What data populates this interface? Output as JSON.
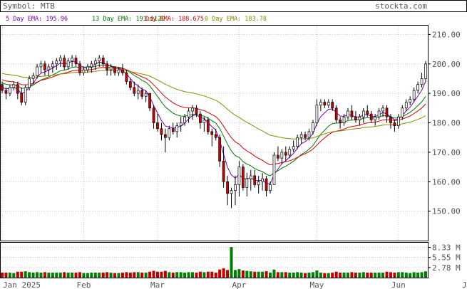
{
  "header": {
    "symbol_label": "Symbol: MTB",
    "site": "stockta.com"
  },
  "legend": [
    {
      "label": "5 Day EMA:",
      "value": "195.96",
      "color": "#7a00b0"
    },
    {
      "label": "13 Day EMA:",
      "value": "191.1120",
      "color": "#007a00"
    },
    {
      "label": "Day EMA:",
      "value": "188.675",
      "color": "#d00000"
    },
    {
      "label": "0 Day EMA:",
      "value": "183.78",
      "color": "#8a8a00"
    }
  ],
  "colors": {
    "up_candle": "#ffffff",
    "down_candle": "#d00000",
    "wick": "#000000",
    "volume_up": "#008000",
    "volume_down": "#c00000",
    "grid": "#c8c8c8",
    "text": "#555555"
  },
  "chart_data": {
    "type": "candlestick",
    "symbol": "MTB",
    "y_ticks": [
      "210.00",
      "200.00",
      "190.00",
      "180.00",
      "170.00",
      "160.00",
      "150.00"
    ],
    "ylim": [
      140,
      213
    ],
    "volume_ticks": [
      "8.33 M",
      "5.55 M",
      "2.78 M"
    ],
    "volume_lim": [
      0,
      9.6
    ],
    "x_labels": [
      "Jan 2025",
      "Feb",
      "Mar",
      "Apr",
      "May",
      "Jun",
      "Jul"
    ],
    "x_label_index": [
      0,
      21,
      40,
      61,
      81,
      102,
      122
    ],
    "ohlc": [
      [
        193,
        194,
        190,
        191
      ],
      [
        191,
        192,
        188,
        190
      ],
      [
        190,
        193,
        189,
        192
      ],
      [
        192,
        194,
        191,
        193
      ],
      [
        193,
        194,
        188,
        190
      ],
      [
        190,
        192,
        186,
        187
      ],
      [
        187,
        193,
        186,
        192
      ],
      [
        192,
        196,
        191,
        195
      ],
      [
        195,
        197,
        193,
        196
      ],
      [
        196,
        200,
        195,
        199
      ],
      [
        199,
        201,
        197,
        200
      ],
      [
        200,
        201,
        196,
        198
      ],
      [
        198,
        200,
        196,
        199
      ],
      [
        199,
        201,
        197,
        200
      ],
      [
        200,
        202,
        198,
        201
      ],
      [
        201,
        203,
        199,
        202
      ],
      [
        202,
        203,
        198,
        199
      ],
      [
        199,
        202,
        198,
        201
      ],
      [
        201,
        203,
        199,
        202
      ],
      [
        202,
        203,
        199,
        200
      ],
      [
        200,
        201,
        196,
        197
      ],
      [
        197,
        199,
        196,
        198
      ],
      [
        198,
        200,
        197,
        199
      ],
      [
        199,
        201,
        197,
        200
      ],
      [
        200,
        202,
        198,
        201
      ],
      [
        201,
        203,
        199,
        202
      ],
      [
        202,
        203,
        199,
        200
      ],
      [
        200,
        201,
        196,
        198
      ],
      [
        198,
        200,
        196,
        199
      ],
      [
        199,
        199,
        196,
        197
      ],
      [
        197,
        199,
        196,
        198
      ],
      [
        198,
        200,
        196,
        197
      ],
      [
        197,
        198,
        193,
        194
      ],
      [
        194,
        195,
        191,
        192
      ],
      [
        192,
        194,
        189,
        190
      ],
      [
        190,
        193,
        188,
        191
      ],
      [
        191,
        192,
        188,
        189
      ],
      [
        189,
        191,
        187,
        190
      ],
      [
        190,
        190,
        184,
        185
      ],
      [
        185,
        186,
        178,
        180
      ],
      [
        180,
        183,
        177,
        178
      ],
      [
        178,
        180,
        174,
        176
      ],
      [
        176,
        178,
        170,
        175
      ],
      [
        175,
        179,
        174,
        178
      ],
      [
        178,
        180,
        176,
        177
      ],
      [
        177,
        180,
        175,
        179
      ],
      [
        179,
        182,
        177,
        180
      ],
      [
        180,
        183,
        179,
        182
      ],
      [
        182,
        185,
        180,
        184
      ],
      [
        184,
        186,
        181,
        185
      ],
      [
        185,
        186,
        182,
        183
      ],
      [
        183,
        184,
        178,
        180
      ],
      [
        180,
        182,
        177,
        181
      ],
      [
        181,
        182,
        176,
        177
      ],
      [
        177,
        178,
        172,
        176
      ],
      [
        176,
        178,
        174,
        175
      ],
      [
        175,
        176,
        165,
        167
      ],
      [
        167,
        172,
        158,
        160
      ],
      [
        160,
        162,
        152,
        156
      ],
      [
        156,
        158,
        151,
        157
      ],
      [
        157,
        162,
        152,
        159
      ],
      [
        159,
        167,
        155,
        165
      ],
      [
        165,
        166,
        157,
        158
      ],
      [
        158,
        163,
        155,
        161
      ],
      [
        161,
        164,
        157,
        162
      ],
      [
        162,
        164,
        158,
        159
      ],
      [
        159,
        162,
        156,
        160
      ],
      [
        160,
        163,
        157,
        161
      ],
      [
        161,
        162,
        155,
        157
      ],
      [
        157,
        160,
        156,
        159
      ],
      [
        159,
        170,
        159,
        169
      ],
      [
        169,
        172,
        167,
        168
      ],
      [
        168,
        171,
        166,
        170
      ],
      [
        170,
        172,
        167,
        169
      ],
      [
        169,
        172,
        168,
        171
      ],
      [
        171,
        174,
        170,
        172
      ],
      [
        172,
        176,
        171,
        175
      ],
      [
        175,
        177,
        173,
        176
      ],
      [
        176,
        177,
        174,
        175
      ],
      [
        175,
        178,
        174,
        177
      ],
      [
        177,
        181,
        176,
        180
      ],
      [
        180,
        188,
        179,
        186
      ],
      [
        186,
        188,
        184,
        187
      ],
      [
        187,
        188,
        185,
        186
      ],
      [
        186,
        188,
        185,
        187
      ],
      [
        187,
        188,
        184,
        185
      ],
      [
        185,
        186,
        180,
        181
      ],
      [
        181,
        182,
        178,
        180
      ],
      [
        180,
        183,
        179,
        182
      ],
      [
        182,
        185,
        181,
        184
      ],
      [
        184,
        186,
        181,
        182
      ],
      [
        182,
        184,
        180,
        181
      ],
      [
        181,
        183,
        179,
        182
      ],
      [
        182,
        185,
        180,
        184
      ],
      [
        184,
        186,
        182,
        183
      ],
      [
        183,
        184,
        180,
        181
      ],
      [
        181,
        183,
        179,
        182
      ],
      [
        182,
        185,
        181,
        184
      ],
      [
        184,
        186,
        182,
        185
      ],
      [
        185,
        186,
        180,
        182
      ],
      [
        182,
        183,
        178,
        180
      ],
      [
        180,
        181,
        177,
        179
      ],
      [
        179,
        183,
        178,
        182
      ],
      [
        182,
        186,
        181,
        185
      ],
      [
        185,
        188,
        184,
        187
      ],
      [
        187,
        189,
        186,
        188
      ],
      [
        188,
        192,
        187,
        191
      ],
      [
        191,
        194,
        190,
        193
      ],
      [
        193,
        197,
        192,
        195
      ],
      [
        195,
        201,
        194,
        200
      ]
    ],
    "ema5": [
      192,
      191.5,
      191.7,
      192.1,
      191.4,
      189.9,
      190.6,
      192.1,
      193.4,
      195.3,
      196.9,
      197.3,
      197.9,
      198.6,
      199.4,
      200.3,
      199.9,
      200.3,
      200.9,
      200.6,
      199.4,
      198.9,
      198.9,
      199.3,
      199.9,
      200.6,
      200.4,
      199.6,
      199.4,
      198.6,
      198.4,
      197.9,
      196.6,
      195.1,
      193.4,
      192.6,
      191.4,
      190.9,
      188.9,
      185.9,
      183.3,
      180.8,
      178.9,
      178.6,
      178.1,
      178.4,
      178.9,
      179.9,
      181.3,
      182.5,
      182.7,
      181.8,
      181.5,
      180,
      178.7,
      177.5,
      174,
      169.3,
      164.9,
      162.3,
      161.2,
      162.5,
      161,
      161,
      161.3,
      160.5,
      160.3,
      160.6,
      159.4,
      159.3,
      162.5,
      164.3,
      166.2,
      167.1,
      168.4,
      169.6,
      171.4,
      172.9,
      173.6,
      174.7,
      176.5,
      179.6,
      182.1,
      183.4,
      184.6,
      184.7,
      183.5,
      182.3,
      182.2,
      182.8,
      182.5,
      182,
      182,
      182.7,
      182.8,
      182.2,
      182.1,
      182.7,
      183.5,
      183,
      182,
      181,
      181.3,
      182.5,
      184,
      185.3,
      187.2,
      189.1,
      191.1,
      194.1
    ]
  }
}
